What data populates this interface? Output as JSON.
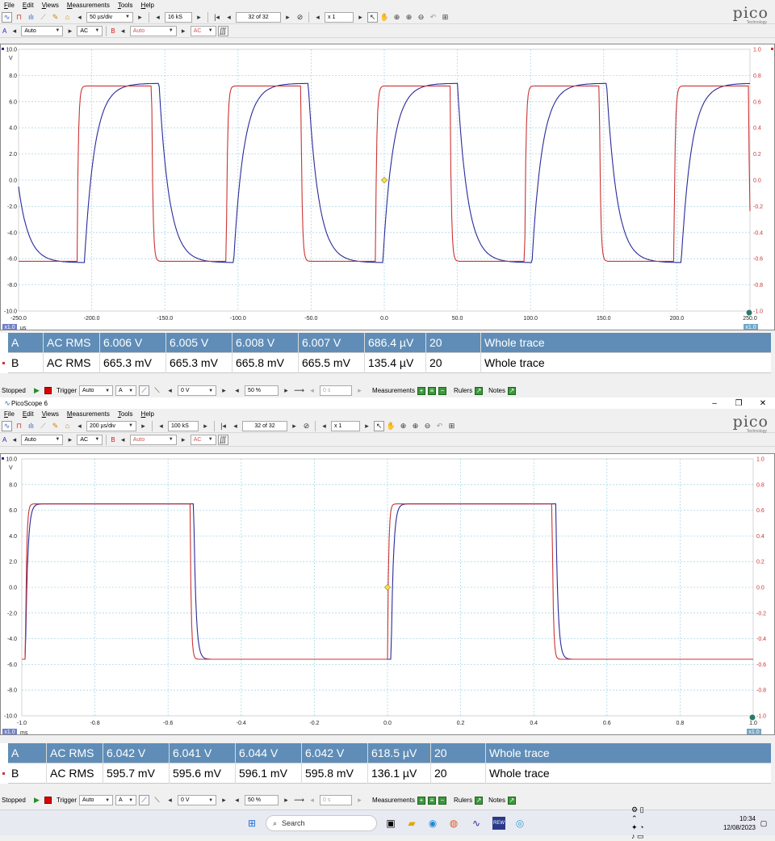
{
  "menu": [
    "File",
    "Edit",
    "Views",
    "Measurements",
    "Tools",
    "Help"
  ],
  "scope1": {
    "timebase": "50 µs/div",
    "samples": "16 kS",
    "buffer": "32 of 32",
    "zoom": "x 1",
    "chA": {
      "label": "A",
      "range": "Auto",
      "coupling": "AC"
    },
    "chB": {
      "label": "B",
      "range": "Auto",
      "coupling": "AC"
    },
    "y_left_ticks": [
      "10.0",
      "8.0",
      "6.0",
      "4.0",
      "2.0",
      "0.0",
      "-2.0",
      "-4.0",
      "-6.0",
      "-8.0",
      "-10.0"
    ],
    "y_right_ticks": [
      "1.0",
      "0.8",
      "0.6",
      "0.4",
      "0.2",
      "0.0",
      "-0.2",
      "-0.4",
      "-0.6",
      "-0.8",
      "-1.0"
    ],
    "y_unit": "V",
    "x_ticks": [
      "-250.0",
      "-200.0",
      "-150.0",
      "-100.0",
      "-50.0",
      "0.0",
      "50.0",
      "100.0",
      "150.0",
      "200.0",
      "250.0"
    ],
    "x_unit": "µs",
    "scale_left": "x1.0",
    "scale_right": "x1.0",
    "rows": [
      {
        "ch": "A",
        "type": "AC RMS",
        "value": "6.006 V",
        "min": "6.005 V",
        "max": "6.008 V",
        "avg": "6.007 V",
        "sd": "686.4 µV",
        "count": "20",
        "span": "Whole trace"
      },
      {
        "ch": "B",
        "type": "AC RMS",
        "value": "665.3 mV",
        "min": "665.3 mV",
        "max": "665.8 mV",
        "avg": "665.5 mV",
        "sd": "135.4 µV",
        "count": "20",
        "span": "Whole trace"
      }
    ],
    "status": {
      "state": "Stopped",
      "trigger_label": "Trigger",
      "trigger_mode": "Auto",
      "trigger_ch": "A",
      "trigger_level": "0 V",
      "trigger_pos": "50 %",
      "trigger_time": "0 s",
      "measurements": "Measurements",
      "rulers": "Rulers",
      "notes": "Notes"
    }
  },
  "window2_title": "PicoScope 6",
  "scope2": {
    "timebase": "200 µs/div",
    "samples": "100 kS",
    "buffer": "32 of 32",
    "zoom": "x 1",
    "chA": {
      "label": "A",
      "range": "Auto",
      "coupling": "AC"
    },
    "chB": {
      "label": "B",
      "range": "Auto",
      "coupling": "AC"
    },
    "y_left_ticks": [
      "10.0",
      "8.0",
      "6.0",
      "4.0",
      "2.0",
      "0.0",
      "-2.0",
      "-4.0",
      "-6.0",
      "-8.0",
      "-10.0"
    ],
    "y_right_ticks": [
      "1.0",
      "0.8",
      "0.6",
      "0.4",
      "0.2",
      "0.0",
      "-0.2",
      "-0.4",
      "-0.6",
      "-0.8",
      "-1.0"
    ],
    "y_unit": "V",
    "x_ticks": [
      "-1.0",
      "-0.8",
      "-0.6",
      "-0.4",
      "-0.2",
      "0.0",
      "0.2",
      "0.4",
      "0.6",
      "0.8",
      "1.0"
    ],
    "x_unit": "ms",
    "scale_left": "x1.0",
    "scale_right": "x1.0",
    "rows": [
      {
        "ch": "A",
        "type": "AC RMS",
        "value": "6.042 V",
        "min": "6.041 V",
        "max": "6.044 V",
        "avg": "6.042 V",
        "sd": "618.5 µV",
        "count": "20",
        "span": "Whole trace"
      },
      {
        "ch": "B",
        "type": "AC RMS",
        "value": "595.7 mV",
        "min": "595.6 mV",
        "max": "596.1 mV",
        "avg": "595.8 mV",
        "sd": "136.1 µV",
        "count": "20",
        "span": "Whole trace"
      }
    ],
    "status": {
      "state": "Stopped",
      "trigger_label": "Trigger",
      "trigger_mode": "Auto",
      "trigger_ch": "A",
      "trigger_level": "0 V",
      "trigger_pos": "50 %",
      "trigger_time": "0 s",
      "measurements": "Measurements",
      "rulers": "Rulers",
      "notes": "Notes"
    }
  },
  "logo": {
    "name": "pico",
    "sub": "Technology"
  },
  "chart_data": [
    {
      "type": "line",
      "xlabel": "µs",
      "ylabel": "V",
      "xlim": [
        -250,
        250
      ],
      "ylim": [
        -10,
        10
      ],
      "y2lim": [
        -1,
        1
      ],
      "grid": true,
      "series": [
        {
          "name": "A",
          "color": "#2a2a9a",
          "axis": "left",
          "shape": "square wave with slow rise and fall",
          "period_us": 102,
          "high": 7.4,
          "low": -6.3,
          "rise_edges_us": [
            -205,
            -103,
            -1,
            101,
            203
          ]
        },
        {
          "name": "B",
          "color": "#cc3333",
          "axis": "right",
          "shape": "square wave",
          "period_us": 102,
          "high": 0.72,
          "low": -0.62,
          "rise_edges_us": [
            -210,
            -108,
            -6,
            96,
            198
          ]
        }
      ]
    },
    {
      "type": "line",
      "xlabel": "ms",
      "ylabel": "V",
      "xlim": [
        -1.0,
        1.0
      ],
      "ylim": [
        -10,
        10
      ],
      "y2lim": [
        -1,
        1
      ],
      "grid": true,
      "series": [
        {
          "name": "A",
          "color": "#2a2a9a",
          "axis": "left",
          "shape": "square wave",
          "high": 6.5,
          "low": -5.6,
          "rise_edges_ms": [
            -0.99,
            0.01
          ],
          "fall_edges_ms": [
            -0.53,
            0.46
          ]
        },
        {
          "name": "B",
          "color": "#cc3333",
          "axis": "right",
          "shape": "square wave",
          "high": 0.65,
          "low": -0.56,
          "rise_edges_ms": [
            -0.99,
            0.0
          ],
          "fall_edges_ms": [
            -0.54,
            0.45
          ]
        }
      ]
    }
  ],
  "taskbar": {
    "search": "Search",
    "time": "10:34",
    "date": "12/08/2023"
  },
  "colors": {
    "measA": "#5f8db7",
    "traceA": "#2a2a9a",
    "traceB": "#cc3333",
    "grid": "#a9d8e8"
  }
}
